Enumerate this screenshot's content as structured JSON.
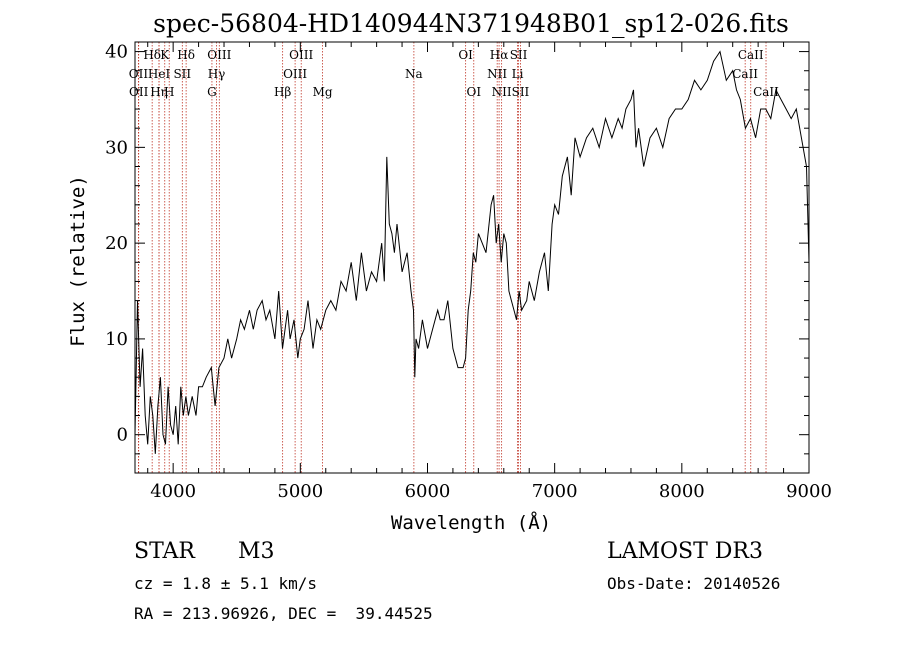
{
  "chart_data": {
    "type": "line",
    "title": "spec-56804-HD140944N371948B01_sp12-026.fits",
    "xlabel": "Wavelength (Å)",
    "ylabel": "Flux (relative)",
    "xlim": [
      3700,
      9000
    ],
    "ylim": [
      -4,
      41
    ],
    "x_ticks": [
      4000,
      5000,
      6000,
      7000,
      8000,
      9000
    ],
    "y_ticks": [
      0,
      10,
      20,
      30,
      40
    ],
    "series": [
      {
        "x": [
          3700,
          3720,
          3740,
          3760,
          3780,
          3800,
          3820,
          3840,
          3860,
          3880,
          3900,
          3920,
          3940,
          3960,
          3980,
          4000,
          4020,
          4040,
          4060,
          4080,
          4100,
          4120,
          4150,
          4180,
          4200,
          4230,
          4260,
          4300,
          4330,
          4360,
          4400,
          4430,
          4460,
          4500,
          4530,
          4560,
          4600,
          4630,
          4660,
          4700,
          4730,
          4760,
          4800,
          4830,
          4860,
          4900,
          4920,
          4950,
          4980,
          5000,
          5030,
          5060,
          5100,
          5130,
          5160,
          5200,
          5240,
          5280,
          5320,
          5360,
          5400,
          5440,
          5480,
          5520,
          5560,
          5600,
          5640,
          5660,
          5680,
          5700,
          5720,
          5740,
          5760,
          5800,
          5840,
          5870,
          5890,
          5900,
          5910,
          5930,
          5960,
          6000,
          6040,
          6080,
          6100,
          6130,
          6160,
          6200,
          6240,
          6280,
          6300,
          6320,
          6340,
          6360,
          6380,
          6400,
          6430,
          6460,
          6500,
          6520,
          6540,
          6560,
          6580,
          6600,
          6620,
          6640,
          6660,
          6680,
          6700,
          6720,
          6740,
          6780,
          6800,
          6840,
          6880,
          6920,
          6950,
          6980,
          7000,
          7030,
          7060,
          7100,
          7130,
          7160,
          7200,
          7250,
          7300,
          7350,
          7400,
          7450,
          7500,
          7530,
          7560,
          7600,
          7620,
          7640,
          7660,
          7700,
          7750,
          7800,
          7850,
          7900,
          7950,
          8000,
          8050,
          8100,
          8150,
          8200,
          8250,
          8300,
          8350,
          8400,
          8430,
          8460,
          8500,
          8540,
          8580,
          8620,
          8660,
          8700,
          8740,
          8780,
          8820,
          8860,
          8900,
          8940,
          8980,
          9000
        ],
        "values": [
          0,
          14,
          5,
          9,
          2,
          -1,
          4,
          2,
          -2,
          3,
          6,
          0,
          -1,
          5,
          1,
          0,
          3,
          -1,
          5,
          2,
          4,
          2,
          4,
          2,
          5,
          5,
          6,
          7,
          3,
          7,
          8,
          10,
          8,
          10,
          12,
          11,
          13,
          11,
          13,
          14,
          12,
          13,
          10,
          15,
          9,
          13,
          10,
          12,
          8,
          10,
          11,
          14,
          9,
          12,
          11,
          13,
          14,
          13,
          16,
          15,
          18,
          14,
          19,
          15,
          17,
          16,
          20,
          16,
          29,
          22,
          21,
          19,
          22,
          17,
          19,
          15,
          13,
          6,
          10,
          9,
          12,
          9,
          11,
          13,
          12,
          12,
          14,
          9,
          7,
          7,
          8,
          13,
          15,
          19,
          18,
          21,
          20,
          19,
          24,
          25,
          20,
          22,
          18,
          21,
          20,
          15,
          14,
          13,
          12,
          15,
          13,
          14,
          16,
          14,
          17,
          19,
          15,
          22,
          24,
          23,
          27,
          29,
          25,
          31,
          29,
          31,
          32,
          30,
          33,
          31,
          33,
          32,
          34,
          35,
          36,
          30,
          32,
          28,
          31,
          32,
          30,
          33,
          34,
          34,
          35,
          37,
          36,
          37,
          39,
          40,
          37,
          38,
          36,
          35,
          32,
          33,
          31,
          34,
          34,
          33,
          36,
          35,
          34,
          33,
          34,
          31,
          28,
          18
        ]
      }
    ],
    "lines": [
      {
        "label": "Hδ",
        "wl": 3835,
        "row": 1
      },
      {
        "label": "OII",
        "wl": 3727,
        "row": 2
      },
      {
        "label": "OII",
        "wl": 3729,
        "row": 3
      },
      {
        "label": "K",
        "wl": 3934,
        "row": 1
      },
      {
        "label": "HeI",
        "wl": 3889,
        "row": 2
      },
      {
        "label": "Hη",
        "wl": 3889,
        "row": 3
      },
      {
        "label": "H",
        "wl": 3969,
        "row": 3
      },
      {
        "label": "Hδ",
        "wl": 4102,
        "row": 1
      },
      {
        "label": "SII",
        "wl": 4072,
        "row": 2
      },
      {
        "label": "OIII",
        "wl": 4363,
        "row": 1
      },
      {
        "label": "Hγ",
        "wl": 4341,
        "row": 2
      },
      {
        "label": "G",
        "wl": 4305,
        "row": 3
      },
      {
        "label": "Hβ",
        "wl": 4861,
        "row": 3
      },
      {
        "label": "OIII",
        "wl": 5007,
        "row": 1
      },
      {
        "label": "OIII",
        "wl": 4959,
        "row": 2
      },
      {
        "label": "Mg",
        "wl": 5175,
        "row": 3
      },
      {
        "label": "Na",
        "wl": 5893,
        "row": 2
      },
      {
        "label": "OI",
        "wl": 6300,
        "row": 1
      },
      {
        "label": "OI",
        "wl": 6364,
        "row": 3
      },
      {
        "label": "Hα",
        "wl": 6563,
        "row": 1
      },
      {
        "label": "SII",
        "wl": 6716,
        "row": 1
      },
      {
        "label": "NII",
        "wl": 6548,
        "row": 2
      },
      {
        "label": "Li",
        "wl": 6708,
        "row": 2
      },
      {
        "label": "NII",
        "wl": 6583,
        "row": 3
      },
      {
        "label": "SII",
        "wl": 6731,
        "row": 3
      },
      {
        "label": "CaII",
        "wl": 8542,
        "row": 1
      },
      {
        "label": "CaII",
        "wl": 8498,
        "row": 2
      },
      {
        "label": "CaII",
        "wl": 8662,
        "row": 3
      }
    ]
  },
  "info": {
    "object_type": "STAR",
    "subclass": "M3",
    "survey": "LAMOST DR3",
    "cz": "cz = 1.8 ± 5.1 km/s",
    "obs_date": "Obs-Date: 20140526",
    "radec": "RA = 213.96926, DEC =  39.44525"
  }
}
